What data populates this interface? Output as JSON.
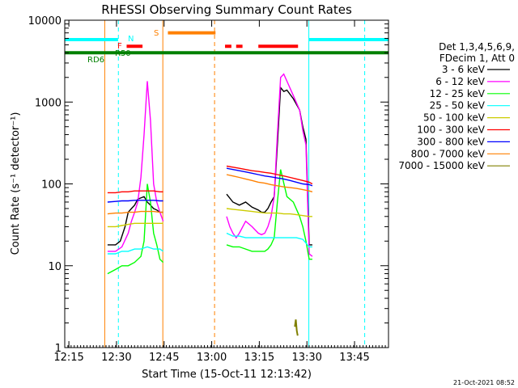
{
  "chart_data": {
    "type": "line",
    "title": "RHESSI Observing Summary Count Rates",
    "xlabel": "Start Time (15-Oct-11 12:13:42)",
    "ylabel": "Count Rate (s⁻¹ detector⁻¹)",
    "y_scale": "log",
    "ylim": [
      1,
      10000
    ],
    "xlim_minutes": [
      0,
      102
    ],
    "x_ticks": [
      {
        "label": "12:15",
        "min": 1.3
      },
      {
        "label": "12:30",
        "min": 16.3
      },
      {
        "label": "12:45",
        "min": 31.3
      },
      {
        "label": "13:00",
        "min": 46.3
      },
      {
        "label": "13:15",
        "min": 61.3
      },
      {
        "label": "13:30",
        "min": 76.3
      },
      {
        "label": "13:45",
        "min": 91.3
      }
    ],
    "y_ticks": [
      {
        "label": "1",
        "v": 1
      },
      {
        "label": "10",
        "v": 10
      },
      {
        "label": "100",
        "v": 100
      },
      {
        "label": "1000",
        "v": 1000
      },
      {
        "label": "10000",
        "v": 10000
      }
    ],
    "legend": {
      "placement": "right",
      "header": [
        "Det 1,3,4,5,6,9,",
        "FDecim 1, Att 0"
      ],
      "entries": [
        {
          "label": "3 - 6 keV",
          "color": "#000000"
        },
        {
          "label": "6 - 12 keV",
          "color": "#ff00ff"
        },
        {
          "label": "12 - 25 keV",
          "color": "#00ff00"
        },
        {
          "label": "25 - 50 keV",
          "color": "#00ffff"
        },
        {
          "label": "50 - 100 keV",
          "color": "#cccc00"
        },
        {
          "label": "100 - 300 keV",
          "color": "#ff0000"
        },
        {
          "label": "300 - 800 keV",
          "color": "#0000ff"
        },
        {
          "label": "800 - 7000 keV",
          "color": "#ff8000"
        },
        {
          "label": "7000 - 15000 keV",
          "color": "#808000"
        }
      ]
    },
    "annotations": [
      {
        "text": "N",
        "color": "#00ffff"
      },
      {
        "text": "S",
        "color": "#ff8000"
      },
      {
        "text": "F",
        "color": "#ff0000"
      },
      {
        "text": "R50",
        "color": "#008000"
      },
      {
        "text": "RD6",
        "color": "#008000"
      }
    ],
    "flag_bars": [
      {
        "flag": "N",
        "color": "#00ffff",
        "y": 5800,
        "segments": [
          [
            0,
            16.8
          ],
          [
            76.9,
            102
          ]
        ]
      },
      {
        "flag": "S",
        "color": "#ff8000",
        "y": 7000,
        "segments": [
          [
            32.5,
            47.5
          ]
        ]
      },
      {
        "flag": "F",
        "color": "#ff0000",
        "y": 4800,
        "segments": [
          [
            19.5,
            24.5
          ],
          [
            50.5,
            52.5
          ],
          [
            54,
            56
          ],
          [
            61,
            73.5
          ]
        ]
      },
      {
        "flag": "R50",
        "color": "#008000",
        "y": 4000,
        "segments": [
          [
            0,
            102
          ]
        ]
      }
    ],
    "vertical_markers": [
      {
        "min": 0,
        "color": "#00ffff",
        "style": "solid"
      },
      {
        "min": 16.9,
        "color": "#00ffff",
        "style": "dashed"
      },
      {
        "min": 12.6,
        "color": "#ff8000",
        "style": "solid"
      },
      {
        "min": 30.9,
        "color": "#ff8000",
        "style": "solid"
      },
      {
        "min": 47.2,
        "color": "#ff8000",
        "style": "dashed"
      },
      {
        "min": 76.9,
        "color": "#00ffff",
        "style": "solid"
      },
      {
        "min": 94.5,
        "color": "#00ffff",
        "style": "dashed"
      }
    ],
    "series": [
      {
        "name": "3 - 6 keV",
        "color": "#000000",
        "x": [
          13.5,
          16,
          17.5,
          19,
          20,
          21,
          22,
          23,
          25,
          26,
          27,
          28,
          29,
          30,
          31,
          51,
          53,
          55,
          57,
          59,
          61,
          62,
          63,
          64,
          65,
          66,
          67,
          68,
          69,
          70,
          72,
          74,
          75,
          76,
          77,
          78
        ],
        "y": [
          18,
          18,
          20,
          30,
          45,
          50,
          55,
          65,
          70,
          60,
          55,
          50,
          48,
          45,
          45,
          75,
          60,
          55,
          60,
          52,
          48,
          45,
          45,
          50,
          60,
          70,
          300,
          1500,
          1350,
          1400,
          1100,
          800,
          500,
          350,
          18,
          18
        ]
      },
      {
        "name": "6 - 12 keV",
        "color": "#ff00ff",
        "x": [
          13.5,
          16,
          18,
          20,
          21,
          22,
          23,
          24,
          25,
          26,
          27,
          28,
          29,
          30,
          31,
          51,
          52,
          53,
          54,
          55,
          57,
          59,
          61,
          62,
          63,
          64,
          65,
          66,
          67,
          68,
          69,
          70,
          72,
          74,
          75,
          76,
          77,
          78
        ],
        "y": [
          15,
          15,
          17,
          25,
          35,
          45,
          60,
          120,
          400,
          1800,
          600,
          100,
          60,
          45,
          35,
          40,
          30,
          25,
          22,
          25,
          35,
          30,
          25,
          24,
          25,
          30,
          40,
          70,
          400,
          2000,
          2200,
          1800,
          1200,
          800,
          450,
          300,
          14,
          13
        ]
      },
      {
        "name": "12 - 25 keV",
        "color": "#00ff00",
        "x": [
          13.5,
          16,
          18,
          20,
          22,
          24,
          25,
          26,
          27,
          28,
          29,
          30,
          31,
          51,
          53,
          55,
          57,
          59,
          61,
          63,
          64,
          65,
          66,
          67,
          68,
          70,
          72,
          74,
          75,
          76,
          77,
          78
        ],
        "y": [
          8,
          9,
          10,
          10,
          11,
          13,
          20,
          100,
          60,
          25,
          18,
          12,
          11,
          18,
          17,
          17,
          16,
          15,
          15,
          15,
          16,
          18,
          22,
          60,
          150,
          70,
          60,
          40,
          30,
          20,
          12,
          12
        ]
      },
      {
        "name": "25 - 50 keV",
        "color": "#00ffff",
        "x": [
          13.5,
          16,
          18,
          20,
          22,
          24,
          26,
          28,
          30,
          31,
          51,
          53,
          55,
          57,
          59,
          61,
          63,
          65,
          67,
          69,
          71,
          73,
          75,
          77,
          78
        ],
        "y": [
          14,
          14,
          15,
          15,
          16,
          16,
          17,
          16,
          16,
          15,
          25,
          23,
          23,
          22,
          22,
          22,
          22,
          22,
          22,
          22,
          22,
          22,
          21,
          17,
          17
        ]
      },
      {
        "name": "50 - 100 keV",
        "color": "#cccc00",
        "x": [
          13.5,
          16,
          18,
          20,
          22,
          24,
          26,
          28,
          30,
          31,
          51,
          53,
          55,
          57,
          59,
          61,
          63,
          65,
          67,
          69,
          71,
          73,
          75,
          77,
          78
        ],
        "y": [
          30,
          30,
          31,
          32,
          33,
          33,
          33,
          33,
          33,
          33,
          50,
          49,
          48,
          47,
          46,
          45,
          44,
          44,
          44,
          43,
          43,
          42,
          41,
          40,
          40
        ]
      },
      {
        "name": "100 - 300 keV",
        "color": "#ff0000",
        "x": [
          13.5,
          16,
          18,
          20,
          22,
          24,
          26,
          28,
          30,
          31,
          51,
          53,
          55,
          57,
          59,
          61,
          63,
          65,
          67,
          69,
          71,
          73,
          75,
          77,
          78
        ],
        "y": [
          78,
          78,
          80,
          80,
          82,
          82,
          82,
          82,
          80,
          80,
          165,
          160,
          155,
          150,
          145,
          142,
          138,
          135,
          130,
          125,
          120,
          115,
          110,
          105,
          100
        ]
      },
      {
        "name": "300 - 800 keV",
        "color": "#0000ff",
        "x": [
          13.5,
          16,
          18,
          20,
          22,
          24,
          26,
          28,
          30,
          31,
          51,
          53,
          55,
          57,
          59,
          61,
          63,
          65,
          67,
          69,
          71,
          73,
          75,
          77,
          78
        ],
        "y": [
          60,
          61,
          62,
          62,
          63,
          63,
          63,
          63,
          62,
          62,
          155,
          150,
          145,
          140,
          135,
          130,
          125,
          122,
          118,
          115,
          110,
          105,
          100,
          98,
          95
        ]
      },
      {
        "name": "800 - 7000 keV",
        "color": "#ff8000",
        "x": [
          13.5,
          16,
          18,
          20,
          22,
          24,
          26,
          28,
          30,
          31,
          51,
          53,
          55,
          57,
          59,
          61,
          63,
          65,
          67,
          69,
          71,
          73,
          75,
          77,
          78
        ],
        "y": [
          43,
          44,
          44,
          45,
          45,
          46,
          46,
          46,
          45,
          45,
          130,
          125,
          120,
          115,
          110,
          105,
          102,
          98,
          95,
          92,
          90,
          88,
          85,
          82,
          80
        ]
      },
      {
        "name": "7000 - 15000 keV",
        "color": "#808000",
        "x": [
          72.5,
          72.8,
          73.1,
          73.4
        ],
        "y": [
          1.8,
          2.2,
          1.6,
          1.4
        ]
      }
    ]
  },
  "footer": {
    "timestamp": "21-Oct-2021 08:52"
  }
}
